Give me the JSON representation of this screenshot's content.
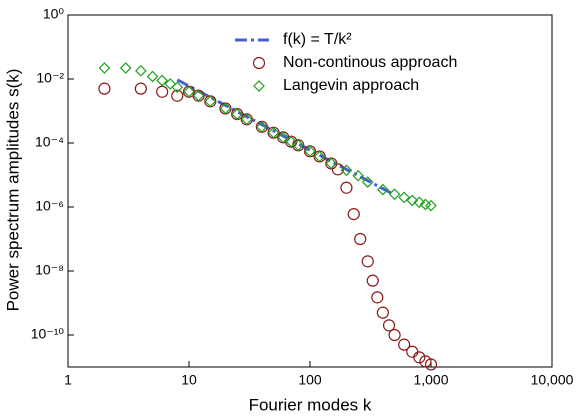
{
  "chart_data": {
    "type": "scatter",
    "x_label": "Fourier modes k",
    "y_label": "Power spectrum amplitudes s(k)",
    "xscale": "log",
    "yscale": "log",
    "xlim": [
      1,
      10000
    ],
    "ylim": [
      1e-11,
      1
    ],
    "xticks": [
      1,
      10,
      100,
      {
        "value": 1000,
        "label": "1,000"
      },
      {
        "value": 10000,
        "label": "10,000"
      }
    ],
    "yticks": [
      {
        "value": 1,
        "label": "10⁰"
      },
      {
        "value": 0.01,
        "label": "10⁻²"
      },
      {
        "value": 0.0001,
        "label": "10⁻⁴"
      },
      {
        "value": 1e-06,
        "label": "10⁻⁶"
      },
      {
        "value": 1e-08,
        "label": "10⁻⁸"
      },
      {
        "value": 1e-10,
        "label": "10⁻¹⁰"
      }
    ],
    "series": [
      {
        "name": "f(k) = T/k²",
        "kind": "line",
        "color": "#4a5fd0",
        "x": [
          8,
          500
        ],
        "values": [
          0.0094,
          2.4e-06
        ]
      },
      {
        "name": "Non-continous approach",
        "kind": "circle",
        "color": "#8b1a1a",
        "x": [
          2,
          4,
          6,
          8,
          10,
          12,
          15,
          20,
          25,
          30,
          40,
          50,
          60,
          70,
          80,
          100,
          120,
          150,
          170,
          200,
          230,
          260,
          300,
          330,
          360,
          400,
          450,
          500,
          600,
          700,
          800,
          900,
          1000
        ],
        "values": [
          0.005,
          0.005,
          0.004,
          0.003,
          0.004,
          0.003,
          0.002,
          0.0012,
          0.0008,
          0.00055,
          0.00032,
          0.00021,
          0.00015,
          0.00011,
          8.5e-05,
          5.5e-05,
          3.8e-05,
          2.3e-05,
          1.5e-05,
          4e-06,
          6e-07,
          1e-07,
          2e-08,
          5e-09,
          1.5e-09,
          5e-10,
          2e-10,
          1e-10,
          5e-11,
          3e-11,
          2e-11,
          1.5e-11,
          1.2e-11
        ]
      },
      {
        "name": "Langevin approach",
        "kind": "diamond",
        "color": "#1fa01f",
        "x": [
          2,
          3,
          4,
          5,
          6,
          7,
          8,
          10,
          12,
          15,
          20,
          25,
          30,
          40,
          50,
          60,
          70,
          80,
          100,
          120,
          150,
          200,
          250,
          300,
          400,
          500,
          600,
          700,
          800,
          900,
          1000
        ],
        "values": [
          0.022,
          0.022,
          0.018,
          0.012,
          0.009,
          0.007,
          0.0055,
          0.004,
          0.003,
          0.002,
          0.0012,
          0.0008,
          0.00055,
          0.00032,
          0.00021,
          0.00015,
          0.00011,
          8.5e-05,
          5.5e-05,
          3.8e-05,
          2.3e-05,
          1.4e-05,
          9.5e-06,
          6e-06,
          3.5e-06,
          2.5e-06,
          2e-06,
          1.6e-06,
          1.4e-06,
          1.2e-06,
          1.1e-06
        ]
      }
    ]
  }
}
